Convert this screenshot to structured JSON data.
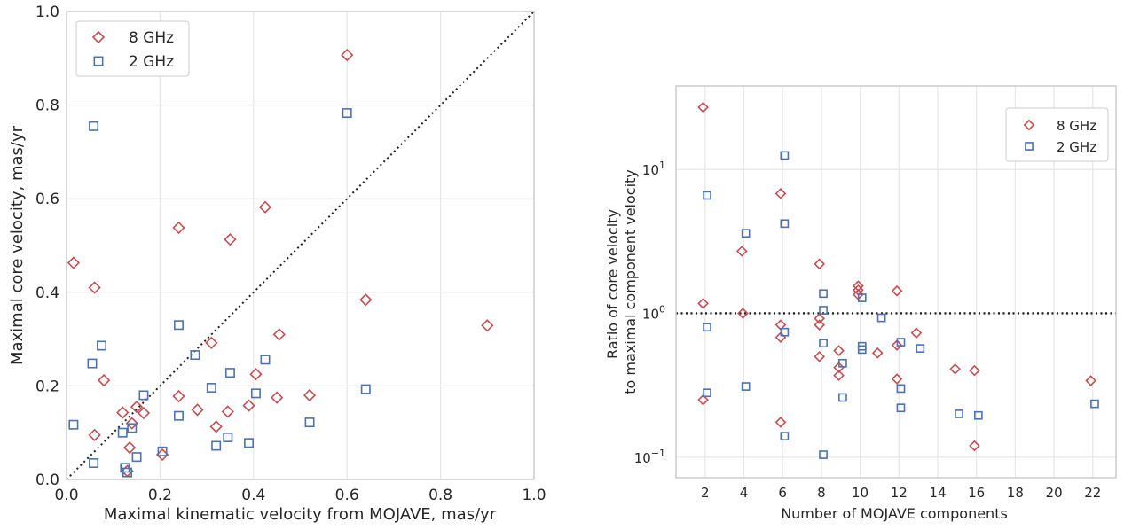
{
  "chart_data": [
    {
      "type": "scatter",
      "xlabel": "Maximal kinematic velocity from MOJAVE, mas/yr",
      "ylabel": "Maximal core velocity, mas/yr",
      "xlim": [
        0,
        1.0
      ],
      "ylim": [
        0,
        1.0
      ],
      "x_ticks": [
        "0.0",
        "0.2",
        "0.4",
        "0.6",
        "0.8",
        "1.0"
      ],
      "y_ticks": [
        "0.0",
        "0.2",
        "0.4",
        "0.6",
        "0.8",
        "1.0"
      ],
      "grid": true,
      "legend_position": "top-left",
      "reference_line": "y = x",
      "series": [
        {
          "name": "8 GHz",
          "marker": "diamond",
          "color": "#c44e52",
          "points": [
            [
              0.015,
              0.463
            ],
            [
              0.06,
              0.41
            ],
            [
              0.06,
              0.095
            ],
            [
              0.08,
              0.212
            ],
            [
              0.12,
              0.143
            ],
            [
              0.13,
              0.018
            ],
            [
              0.135,
              0.068
            ],
            [
              0.14,
              0.12
            ],
            [
              0.15,
              0.155
            ],
            [
              0.165,
              0.142
            ],
            [
              0.205,
              0.053
            ],
            [
              0.24,
              0.538
            ],
            [
              0.24,
              0.178
            ],
            [
              0.28,
              0.149
            ],
            [
              0.31,
              0.292
            ],
            [
              0.32,
              0.113
            ],
            [
              0.345,
              0.145
            ],
            [
              0.35,
              0.513
            ],
            [
              0.39,
              0.158
            ],
            [
              0.405,
              0.225
            ],
            [
              0.425,
              0.582
            ],
            [
              0.45,
              0.175
            ],
            [
              0.455,
              0.31
            ],
            [
              0.52,
              0.18
            ],
            [
              0.6,
              0.907
            ],
            [
              0.64,
              0.384
            ],
            [
              0.9,
              0.329
            ]
          ]
        },
        {
          "name": "2 GHz",
          "marker": "square",
          "color": "#4c72b0",
          "points": [
            [
              0.015,
              0.117
            ],
            [
              0.055,
              0.248
            ],
            [
              0.058,
              0.755
            ],
            [
              0.058,
              0.035
            ],
            [
              0.075,
              0.286
            ],
            [
              0.12,
              0.1
            ],
            [
              0.125,
              0.025
            ],
            [
              0.13,
              0.015
            ],
            [
              0.14,
              0.11
            ],
            [
              0.15,
              0.048
            ],
            [
              0.165,
              0.18
            ],
            [
              0.205,
              0.06
            ],
            [
              0.24,
              0.33
            ],
            [
              0.24,
              0.136
            ],
            [
              0.275,
              0.266
            ],
            [
              0.31,
              0.196
            ],
            [
              0.32,
              0.072
            ],
            [
              0.345,
              0.09
            ],
            [
              0.35,
              0.228
            ],
            [
              0.39,
              0.078
            ],
            [
              0.405,
              0.184
            ],
            [
              0.425,
              0.256
            ],
            [
              0.52,
              0.122
            ],
            [
              0.6,
              0.783
            ],
            [
              0.64,
              0.193
            ]
          ]
        }
      ]
    },
    {
      "type": "scatter",
      "xlabel": "Number of MOJAVE components",
      "ylabel": "Ratio of core velocity\nto maximal component velocity",
      "ylabel_lines": [
        "Ratio of core velocity",
        "to maximal component velocity"
      ],
      "xlim": [
        0.5,
        23.2
      ],
      "ylim": [
        0.072,
        38
      ],
      "yscale": "log",
      "x_ticks": [
        "2",
        "4",
        "6",
        "8",
        "10",
        "12",
        "14",
        "16",
        "18",
        "20",
        "22"
      ],
      "y_ticks": [
        {
          "value": 0.1,
          "base": "10",
          "exp": "−1"
        },
        {
          "value": 1,
          "base": "10",
          "exp": "0"
        },
        {
          "value": 10,
          "base": "10",
          "exp": "1"
        }
      ],
      "grid": true,
      "legend_position": "top-right",
      "reference_line": "y = 1",
      "series": [
        {
          "name": "8 GHz",
          "marker": "diamond",
          "color": "#c44e52",
          "points": [
            [
              1.9,
              27
            ],
            [
              1.9,
              1.17
            ],
            [
              1.9,
              0.25
            ],
            [
              3.9,
              2.7
            ],
            [
              3.95,
              1.0
            ],
            [
              5.9,
              6.8
            ],
            [
              5.9,
              0.83
            ],
            [
              5.9,
              0.68
            ],
            [
              5.9,
              0.175
            ],
            [
              7.9,
              2.2
            ],
            [
              7.9,
              0.92
            ],
            [
              7.9,
              0.83
            ],
            [
              7.9,
              0.5
            ],
            [
              8.9,
              0.55
            ],
            [
              8.9,
              0.42
            ],
            [
              8.9,
              0.37
            ],
            [
              9.9,
              1.55
            ],
            [
              9.9,
              1.45
            ],
            [
              9.9,
              1.35
            ],
            [
              10.9,
              0.53
            ],
            [
              11.9,
              1.43
            ],
            [
              11.9,
              0.6
            ],
            [
              11.9,
              0.35
            ],
            [
              12.9,
              0.73
            ],
            [
              14.9,
              0.41
            ],
            [
              15.9,
              0.4
            ],
            [
              15.9,
              0.12
            ],
            [
              21.9,
              0.34
            ]
          ]
        },
        {
          "name": "2 GHz",
          "marker": "square",
          "color": "#4c72b0",
          "points": [
            [
              2.1,
              6.6
            ],
            [
              2.1,
              0.8
            ],
            [
              2.1,
              0.28
            ],
            [
              4.1,
              3.6
            ],
            [
              4.1,
              0.31
            ],
            [
              6.1,
              12.5
            ],
            [
              6.1,
              4.2
            ],
            [
              6.1,
              0.74
            ],
            [
              6.1,
              0.14
            ],
            [
              8.1,
              1.37
            ],
            [
              8.1,
              1.05
            ],
            [
              8.1,
              0.62
            ],
            [
              8.1,
              0.104
            ],
            [
              9.1,
              0.45
            ],
            [
              9.1,
              0.26
            ],
            [
              10.1,
              1.28
            ],
            [
              10.1,
              0.59
            ],
            [
              10.1,
              0.56
            ],
            [
              11.1,
              0.93
            ],
            [
              12.1,
              0.63
            ],
            [
              12.1,
              0.3
            ],
            [
              12.1,
              0.22
            ],
            [
              13.1,
              0.57
            ],
            [
              15.1,
              0.2
            ],
            [
              16.1,
              0.195
            ],
            [
              22.1,
              0.235
            ]
          ]
        }
      ]
    }
  ]
}
